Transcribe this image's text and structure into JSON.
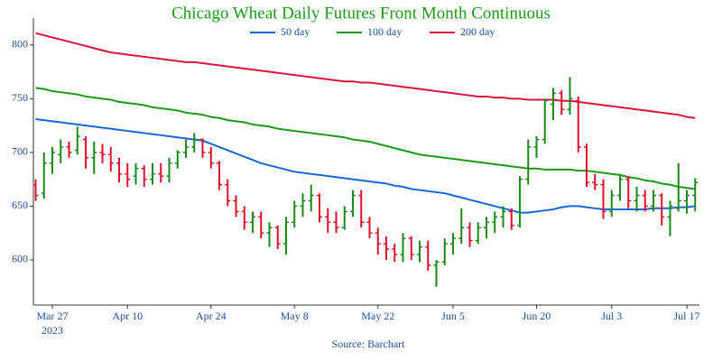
{
  "chart_data": {
    "type": "ohlc",
    "title": "Chicago Wheat Daily Futures Front Month Continuous",
    "source": "Source: Barchart",
    "year_label": "2023",
    "categories": [
      null,
      null,
      "Mar 27",
      null,
      null,
      null,
      null,
      null,
      null,
      null,
      null,
      "Apr 10",
      null,
      null,
      null,
      null,
      null,
      null,
      null,
      null,
      null,
      "Apr 24",
      null,
      null,
      null,
      null,
      null,
      null,
      null,
      null,
      null,
      "May 8",
      null,
      null,
      null,
      null,
      null,
      null,
      null,
      null,
      null,
      "May 22",
      null,
      null,
      null,
      null,
      null,
      null,
      null,
      null,
      "Jun 5",
      null,
      null,
      null,
      null,
      null,
      null,
      null,
      null,
      null,
      "Jun 20",
      null,
      null,
      null,
      null,
      null,
      null,
      null,
      null,
      "Jul 3",
      null,
      null,
      null,
      null,
      null,
      null,
      null,
      null,
      "Jul 17",
      null
    ],
    "open": [
      670,
      662,
      690,
      698,
      705,
      702,
      712,
      695,
      700,
      698,
      690,
      680,
      678,
      685,
      675,
      680,
      678,
      690,
      700,
      705,
      712,
      700,
      690,
      670,
      655,
      645,
      635,
      640,
      625,
      630,
      615,
      635,
      650,
      655,
      660,
      640,
      635,
      630,
      645,
      660,
      635,
      625,
      615,
      610,
      605,
      620,
      605,
      612,
      595,
      598,
      615,
      620,
      630,
      618,
      630,
      635,
      640,
      645,
      632,
      675,
      705,
      712,
      745,
      755,
      740,
      748,
      705,
      672,
      670,
      645,
      660,
      675,
      655,
      660,
      650,
      660,
      640,
      648,
      655,
      660
    ],
    "high": [
      675,
      700,
      705,
      712,
      710,
      724,
      715,
      710,
      708,
      705,
      695,
      690,
      690,
      688,
      690,
      690,
      695,
      702,
      712,
      718,
      713,
      705,
      692,
      675,
      660,
      650,
      645,
      645,
      635,
      632,
      640,
      655,
      662,
      670,
      662,
      648,
      645,
      650,
      665,
      665,
      640,
      630,
      622,
      615,
      625,
      622,
      618,
      618,
      600,
      620,
      625,
      648,
      635,
      635,
      640,
      645,
      650,
      648,
      678,
      712,
      715,
      750,
      760,
      758,
      770,
      752,
      708,
      680,
      675,
      665,
      680,
      678,
      668,
      665,
      665,
      662,
      655,
      690,
      665,
      676
    ],
    "low": [
      655,
      657,
      680,
      690,
      695,
      698,
      685,
      680,
      690,
      682,
      672,
      668,
      670,
      668,
      670,
      672,
      672,
      685,
      695,
      700,
      695,
      685,
      665,
      650,
      640,
      628,
      625,
      620,
      612,
      610,
      605,
      630,
      640,
      645,
      635,
      625,
      625,
      628,
      640,
      630,
      620,
      605,
      600,
      598,
      598,
      600,
      598,
      590,
      575,
      595,
      605,
      615,
      612,
      615,
      620,
      625,
      630,
      628,
      630,
      670,
      695,
      708,
      730,
      735,
      735,
      700,
      668,
      665,
      638,
      640,
      655,
      648,
      645,
      645,
      645,
      632,
      622,
      645,
      643,
      645
    ],
    "close": [
      660,
      690,
      700,
      705,
      700,
      715,
      695,
      700,
      698,
      690,
      680,
      675,
      685,
      675,
      680,
      678,
      690,
      700,
      705,
      712,
      700,
      690,
      670,
      655,
      645,
      635,
      640,
      625,
      630,
      615,
      635,
      650,
      655,
      660,
      640,
      635,
      630,
      645,
      660,
      635,
      625,
      615,
      610,
      605,
      620,
      605,
      612,
      595,
      598,
      615,
      620,
      630,
      618,
      630,
      635,
      640,
      645,
      632,
      675,
      705,
      712,
      748,
      755,
      740,
      750,
      705,
      672,
      670,
      645,
      660,
      675,
      655,
      660,
      650,
      660,
      640,
      650,
      655,
      660,
      672
    ],
    "up_color": "#1a8a1a",
    "down_color": "#e0102a",
    "series": [
      {
        "name": "50 day",
        "color": "#1a66d6",
        "values": [
          731,
          730,
          729,
          728,
          727,
          726,
          725,
          724,
          723,
          722,
          721,
          720,
          719,
          718,
          717,
          716,
          715,
          714,
          713,
          712,
          711,
          708,
          705,
          702,
          699,
          696,
          693,
          690,
          688,
          686,
          684,
          682,
          681,
          680,
          679,
          678,
          677,
          676,
          675,
          674,
          673,
          672,
          671,
          669,
          668,
          666,
          665,
          664,
          663,
          662,
          660,
          658,
          656,
          654,
          652,
          650,
          648,
          646,
          644,
          644,
          645,
          646,
          647,
          649,
          650,
          650,
          649,
          648,
          647,
          647,
          647,
          647,
          647,
          647,
          648,
          648,
          648,
          649,
          649,
          650
        ]
      },
      {
        "name": "100 day",
        "color": "#1a9a1a",
        "values": [
          760,
          759,
          757,
          756,
          755,
          754,
          752,
          751,
          750,
          749,
          747,
          746,
          745,
          744,
          742,
          741,
          740,
          739,
          737,
          736,
          735,
          733,
          732,
          730,
          729,
          728,
          726,
          725,
          724,
          722,
          721,
          720,
          719,
          718,
          717,
          716,
          715,
          714,
          712,
          711,
          710,
          708,
          706,
          704,
          702,
          700,
          698,
          697,
          696,
          695,
          694,
          693,
          692,
          691,
          690,
          689,
          688,
          687,
          686,
          685,
          685,
          684,
          684,
          684,
          684,
          683,
          683,
          682,
          681,
          680,
          679,
          677,
          676,
          674,
          673,
          671,
          670,
          668,
          667,
          666
        ]
      },
      {
        "name": "200 day",
        "color": "#dc143c",
        "values": [
          811,
          809,
          807,
          805,
          803,
          801,
          799,
          797,
          795,
          793,
          792,
          791,
          790,
          789,
          788,
          787,
          786,
          785,
          784,
          784,
          783,
          782,
          781,
          780,
          779,
          778,
          777,
          776,
          775,
          774,
          773,
          772,
          771,
          770,
          769,
          768,
          767,
          766,
          766,
          765,
          765,
          764,
          763,
          762,
          761,
          760,
          759,
          758,
          757,
          756,
          755,
          754,
          753,
          752,
          752,
          751,
          751,
          750,
          750,
          749,
          749,
          749,
          749,
          748,
          748,
          747,
          746,
          745,
          744,
          743,
          742,
          741,
          740,
          739,
          738,
          737,
          736,
          735,
          733,
          732
        ]
      }
    ],
    "ylim": [
      558,
      825
    ],
    "yticks": [
      600,
      650,
      700,
      750,
      800
    ],
    "legend": "top"
  }
}
